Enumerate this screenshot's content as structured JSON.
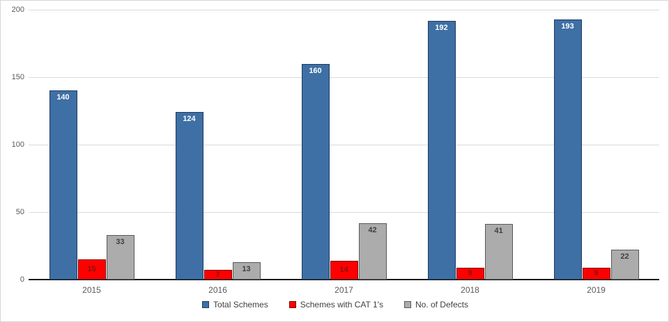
{
  "chart_data": {
    "type": "bar",
    "title": "",
    "xlabel": "",
    "ylabel": "",
    "grid": true,
    "legend_position": "bottom",
    "categories": [
      "2015",
      "2016",
      "2017",
      "2018",
      "2019"
    ],
    "series": [
      {
        "name": "Total Schemes",
        "values": [
          140,
          124,
          160,
          192,
          193
        ],
        "fill": "#3E6FA5",
        "border": "#1F3C5F",
        "label_color": "#FFFFFF",
        "label_pos": "inside-top"
      },
      {
        "name": "Schemes with CAT 1's",
        "values": [
          15,
          7,
          14,
          9,
          9
        ],
        "fill": "#FF0000",
        "border": "#7A0000",
        "label_color": "#7C1911",
        "label_pos": "center"
      },
      {
        "name": "No. of Defects",
        "values": [
          33,
          13,
          42,
          41,
          22
        ],
        "fill": "#ACACAC",
        "border": "#595959",
        "label_color": "#3F3F3F",
        "label_pos": "inside-top"
      }
    ],
    "y_axis": {
      "ticks": [
        0,
        50,
        100,
        150,
        200
      ],
      "min": 0,
      "max": 200
    }
  },
  "colors": {
    "gridline": "#D9D9D9",
    "axis_line": "#1A1A1A",
    "tick_text": "#595959",
    "legend_text": "#3F3F3F",
    "background": "#FFFFFF"
  }
}
